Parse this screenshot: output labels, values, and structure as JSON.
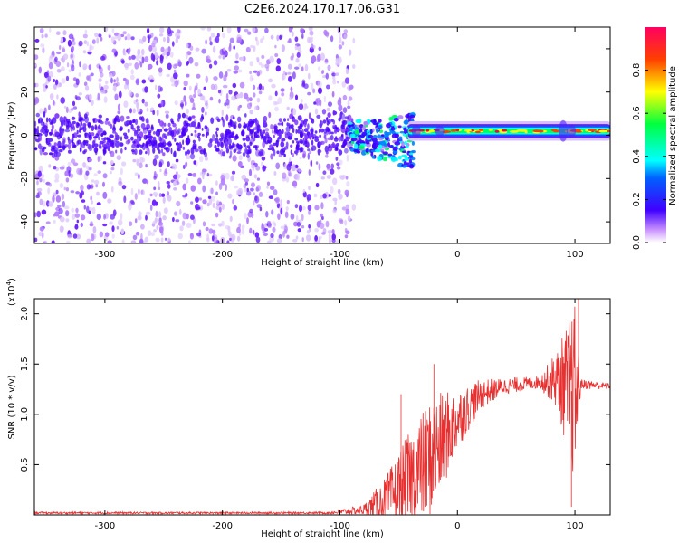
{
  "title": "C2E6.2024.170.17.06.G31",
  "chart_data": [
    {
      "type": "heatmap",
      "xlabel": "Height of straight line (km)",
      "ylabel": "Frequency (Hz)",
      "xlim": [
        -360,
        130
      ],
      "ylim": [
        -50,
        50
      ],
      "xticks": [
        -300,
        -200,
        -100,
        0,
        100
      ],
      "yticks": [
        -40,
        -20,
        0,
        20,
        40
      ],
      "colorbar": {
        "label": "Normalized spectral amplitude",
        "ticks": [
          "0.0",
          "0.2",
          "0.4",
          "0.6",
          "0.8"
        ],
        "range": [
          0,
          1
        ],
        "colors": [
          "#ffffff",
          "#b060ff",
          "#4000ff",
          "#0060ff",
          "#00ffff",
          "#00ff40",
          "#ffff00",
          "#ff4000",
          "#ff0060"
        ]
      },
      "description_regions": [
        {
          "x": [
            -360,
            -90
          ],
          "y": [
            -50,
            50
          ],
          "level": "low-noise"
        },
        {
          "x": [
            -90,
            -40
          ],
          "y": [
            -20,
            10
          ],
          "level": "medium"
        },
        {
          "x": [
            -40,
            130
          ],
          "y": [
            -1,
            5
          ],
          "level": "high-narrow-band"
        }
      ]
    },
    {
      "type": "line",
      "xlabel": "Height of straight line (km)",
      "ylabel": "SNR (10 * v/v)",
      "yunit_label": "(x10",
      "yunit_exp": "4",
      "yunit_close": ")",
      "xlim": [
        -360,
        130
      ],
      "ylim": [
        0,
        2.15
      ],
      "xticks": [
        -300,
        -200,
        -100,
        0,
        100
      ],
      "yticks": [
        "0.5",
        "1.0",
        "1.5",
        "2.0"
      ],
      "color": "#e83030",
      "envelope": [
        {
          "x": -360,
          "base": 0.02,
          "spread": 0.01
        },
        {
          "x": -110,
          "base": 0.02,
          "spread": 0.01
        },
        {
          "x": -80,
          "base": 0.05,
          "spread": 0.05
        },
        {
          "x": -60,
          "base": 0.15,
          "spread": 0.25
        },
        {
          "x": -40,
          "base": 0.35,
          "spread": 0.5
        },
        {
          "x": -20,
          "base": 0.6,
          "spread": 0.6
        },
        {
          "x": 0,
          "base": 0.95,
          "spread": 0.3
        },
        {
          "x": 20,
          "base": 1.2,
          "spread": 0.15
        },
        {
          "x": 40,
          "base": 1.28,
          "spread": 0.08
        },
        {
          "x": 70,
          "base": 1.32,
          "spread": 0.06
        },
        {
          "x": 85,
          "base": 1.35,
          "spread": 0.3
        },
        {
          "x": 100,
          "base": 1.2,
          "spread": 0.9
        },
        {
          "x": 105,
          "base": 1.3,
          "spread": 0.05
        },
        {
          "x": 130,
          "base": 1.28,
          "spread": 0.03
        }
      ],
      "peaks": [
        {
          "x": 103,
          "y": 2.15
        },
        {
          "x": 97,
          "y": 0.08
        },
        {
          "x": -20,
          "y": 1.5
        },
        {
          "x": -48,
          "y": 1.2
        }
      ]
    }
  ]
}
